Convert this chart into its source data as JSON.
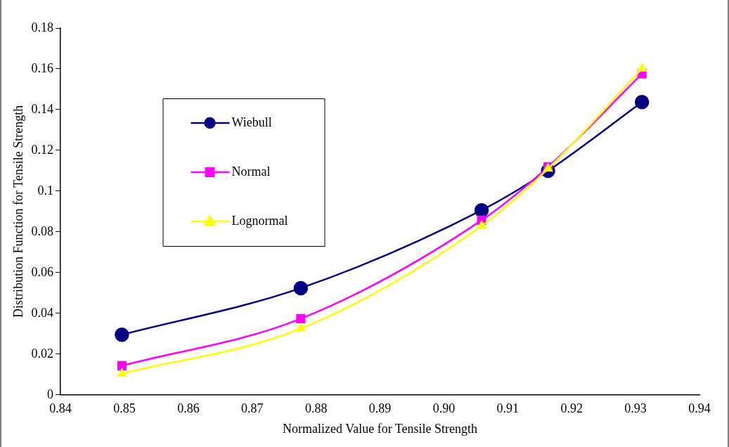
{
  "chart_data": {
    "type": "line",
    "xlabel": "Normalized Value for Tensile Strength",
    "ylabel": "Distribution Function for Tensile Strength",
    "x": [
      0.8496,
      0.8776,
      0.9059,
      0.9163,
      0.931
    ],
    "xlim": [
      0.84,
      0.94
    ],
    "xticks": [
      0.84,
      0.85,
      0.86,
      0.87,
      0.88,
      0.89,
      {
        "value": 0.9,
        "label": "0.90"
      },
      0.91,
      0.92,
      0.93,
      0.94
    ],
    "ylim": [
      0,
      0.18
    ],
    "yticks": [
      0,
      0.02,
      0.04,
      0.06,
      0.08,
      0.1,
      0.12,
      0.14,
      0.16,
      0.18
    ],
    "grid": false,
    "legend": "top left",
    "line_style": "solid",
    "series": [
      {
        "name": "Wiebull",
        "color": "#000080",
        "marker": "circle",
        "values": [
          0.0295,
          0.0524,
          0.0906,
          0.11,
          0.1437
        ]
      },
      {
        "name": "Normal",
        "color": "#ff00ff",
        "marker": "square",
        "values": [
          0.0143,
          0.0374,
          0.0857,
          0.1119,
          0.1576
        ]
      },
      {
        "name": "Lognormal",
        "color": "#ffff00",
        "marker": "triangle",
        "values": [
          0.0104,
          0.0326,
          0.0829,
          0.111,
          0.1601
        ]
      }
    ]
  }
}
